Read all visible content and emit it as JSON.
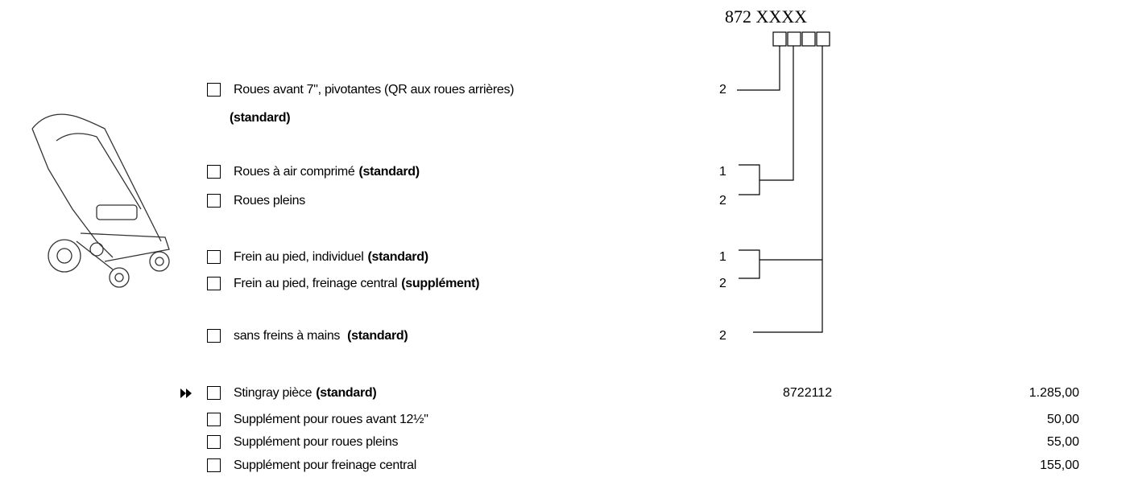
{
  "header": {
    "code": "872 XXXX"
  },
  "options": [
    {
      "text": "Roues avant 7\", pivotantes (QR aux roues arrières)",
      "bold": "(standard)",
      "code": "2"
    },
    {
      "text": "Roues à air comprimé",
      "bold": "(standard)",
      "code": "1"
    },
    {
      "text": "Roues pleins",
      "code": "2"
    },
    {
      "text": "Frein au pied, individuel",
      "bold": "(standard)",
      "code": "1"
    },
    {
      "text": "Frein au pied, freinage central",
      "bold": "(supplément)",
      "code": "2"
    },
    {
      "text": "sans freins à mains",
      "bold": "(standard)",
      "code": "2"
    }
  ],
  "prices": [
    {
      "text": "Stingray pièce",
      "bold": "(standard)",
      "article": "8722112",
      "price": "1.285,00"
    },
    {
      "text": "Supplément pour roues avant 12½\"",
      "price": "50,00"
    },
    {
      "text": "Supplément pour roues pleins",
      "price": "55,00"
    },
    {
      "text": "Supplément pour freinage central",
      "price": "155,00"
    }
  ]
}
